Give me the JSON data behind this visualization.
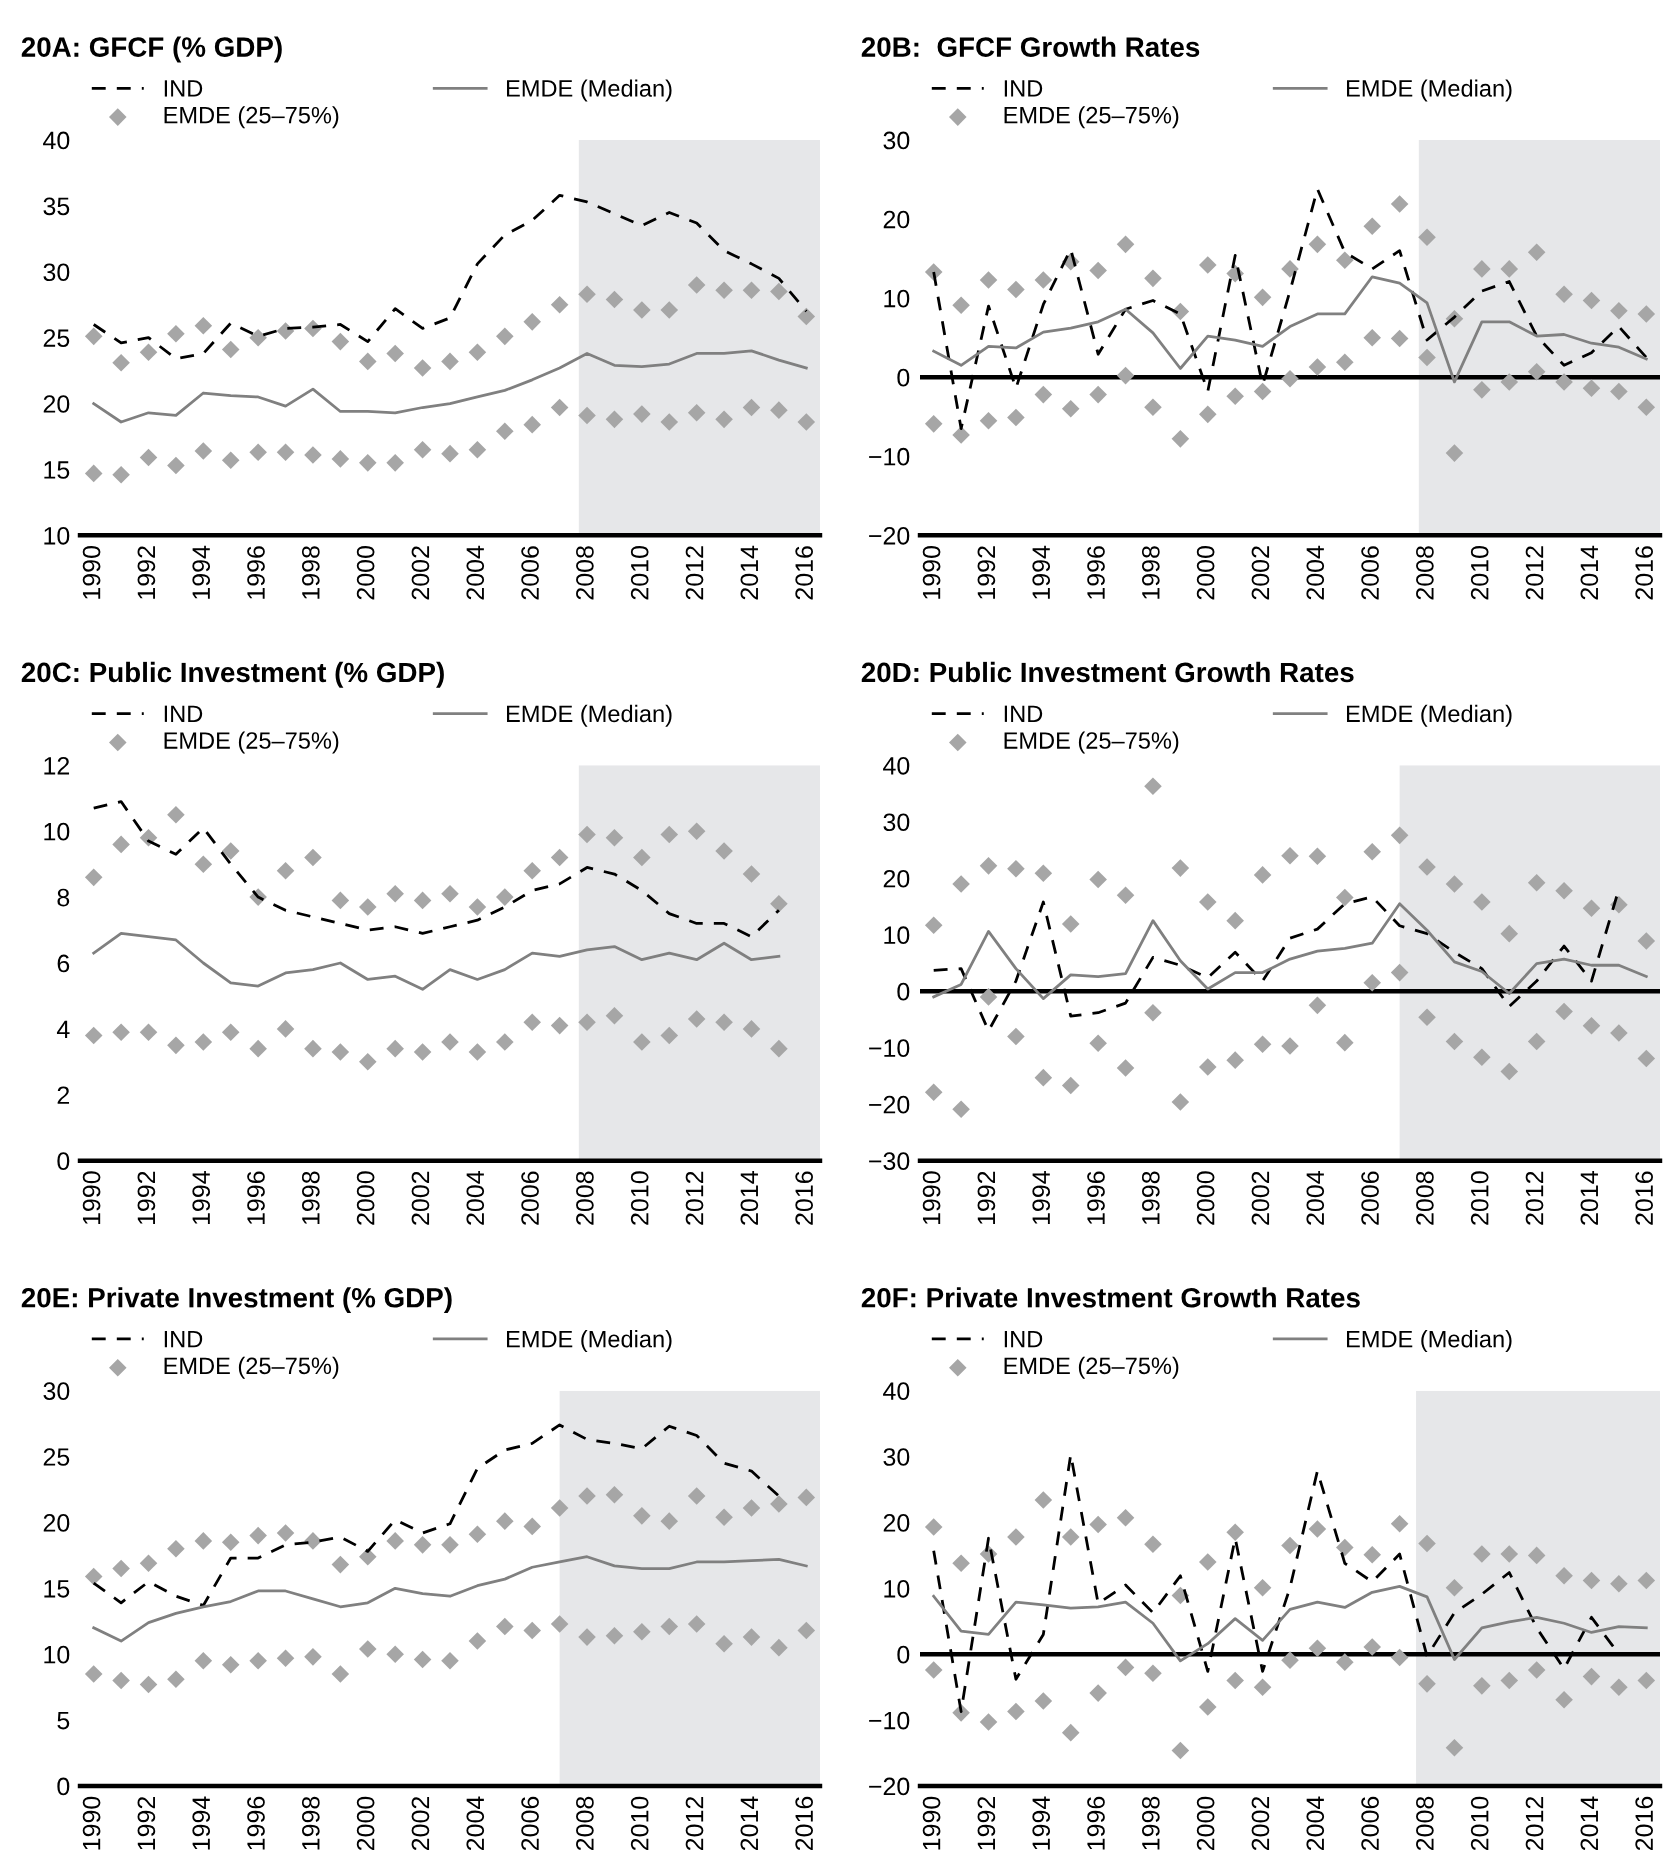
{
  "chart_data": [
    {
      "type": "line",
      "title": "20A: GFCF (% GDP)",
      "x": [
        1990,
        1991,
        1992,
        1993,
        1994,
        1995,
        1996,
        1997,
        1998,
        1999,
        2000,
        2001,
        2002,
        2003,
        2004,
        2005,
        2006,
        2007,
        2008,
        2009,
        2010,
        2011,
        2012,
        2013,
        2014,
        2015,
        2016
      ],
      "xlim": [
        1989.5,
        2016.5
      ],
      "xticks": [
        1990,
        1992,
        1994,
        1996,
        1998,
        2000,
        2002,
        2004,
        2006,
        2008,
        2010,
        2012,
        2014,
        2016
      ],
      "ylim": [
        10,
        40
      ],
      "yticks": [
        10,
        15,
        20,
        25,
        30,
        35,
        40
      ],
      "legend": "top",
      "grid": false,
      "bands": [
        {
          "axis": "x",
          "from": 2007.7,
          "to": 2016.5,
          "color": "#e6e7e9"
        }
      ],
      "series": [
        {
          "name": "IND",
          "type": "line",
          "color": "#000000",
          "line_style": "dashed",
          "values": [
            26.0,
            24.6,
            25.0,
            23.4,
            23.8,
            26.1,
            25.1,
            25.7,
            25.8,
            26.0,
            24.7,
            27.2,
            25.7,
            26.5,
            30.6,
            32.8,
            33.9,
            35.8,
            35.3,
            34.4,
            33.5,
            34.5,
            33.7,
            31.6,
            30.6,
            29.5,
            27.0
          ]
        },
        {
          "name": "EMDE (Median)",
          "type": "line",
          "color": "#808080",
          "line_style": "solid",
          "values": [
            20.0,
            18.6,
            19.3,
            19.1,
            20.8,
            20.6,
            20.5,
            19.8,
            21.1,
            19.4,
            19.4,
            19.3,
            19.7,
            20.0,
            20.5,
            21.0,
            21.8,
            22.7,
            23.8,
            22.9,
            22.8,
            23.0,
            23.8,
            23.8,
            24.0,
            23.3,
            22.7
          ]
        },
        {
          "name": "EMDE (25–75%)",
          "type": "scatter",
          "marker": "diamond",
          "color": "#a6a6a6",
          "values": [
            25.1,
            23.1,
            23.9,
            25.3,
            25.9,
            24.1,
            25.0,
            25.5,
            25.7,
            24.7,
            23.2,
            23.8,
            22.7,
            23.2,
            23.9,
            25.1,
            26.2,
            27.5,
            28.3,
            27.9,
            27.1,
            27.1,
            29.0,
            28.6,
            28.6,
            28.5,
            26.6
          ]
        },
        {
          "type": "scatter",
          "marker": "diamond",
          "color": "#a6a6a6",
          "values": [
            14.7,
            14.6,
            15.9,
            15.3,
            16.4,
            15.7,
            16.3,
            16.3,
            16.1,
            15.8,
            15.5,
            15.5,
            16.5,
            16.2,
            16.5,
            17.9,
            18.4,
            19.7,
            19.1,
            18.8,
            19.2,
            18.6,
            19.3,
            18.8,
            19.7,
            19.5,
            18.6
          ]
        }
      ]
    },
    {
      "type": "line",
      "title": "20B:  GFCF Growth Rates",
      "x": [
        1990,
        1991,
        1992,
        1993,
        1994,
        1995,
        1996,
        1997,
        1998,
        1999,
        2000,
        2001,
        2002,
        2003,
        2004,
        2005,
        2006,
        2007,
        2008,
        2009,
        2010,
        2011,
        2012,
        2013,
        2014,
        2015,
        2016
      ],
      "xlim": [
        1989.5,
        2016.5
      ],
      "xticks": [
        1990,
        1992,
        1994,
        1996,
        1998,
        2000,
        2002,
        2004,
        2006,
        2008,
        2010,
        2012,
        2014,
        2016
      ],
      "ylim": [
        -20,
        30
      ],
      "yticks": [
        {
          "value": -20,
          "label": "−20"
        },
        {
          "value": -10,
          "label": "−10"
        },
        0,
        10,
        20,
        30
      ],
      "legend": "top",
      "grid": false,
      "ref_lines": [
        {
          "axis": "y",
          "value": 0,
          "color": "#000000"
        }
      ],
      "bands": [
        {
          "axis": "x",
          "from": 2007.7,
          "to": 2016.5,
          "color": "#e6e7e9"
        }
      ],
      "series": [
        {
          "name": "IND",
          "type": "line",
          "color": "#000000",
          "line_style": "dashed",
          "values": [
            13.3,
            -6.5,
            9.0,
            -1.4,
            9.2,
            16.2,
            2.9,
            8.6,
            9.7,
            8.0,
            -1.8,
            15.4,
            -1.0,
            10.9,
            23.8,
            15.8,
            13.7,
            16.0,
            4.7,
            7.6,
            10.9,
            12.1,
            5.2,
            1.5,
            3.1,
            6.4,
            2.5
          ]
        },
        {
          "name": "EMDE (Median)",
          "type": "line",
          "color": "#808080",
          "line_style": "solid",
          "values": [
            3.3,
            1.5,
            3.9,
            3.7,
            5.7,
            6.2,
            7.0,
            8.6,
            5.6,
            1.1,
            5.2,
            4.7,
            3.9,
            6.4,
            8.0,
            8.0,
            12.7,
            11.9,
            9.4,
            -0.6,
            7.0,
            7.0,
            5.2,
            5.4,
            4.3,
            3.8,
            2.3
          ]
        },
        {
          "name": "EMDE (25–75%)",
          "type": "scatter",
          "marker": "diamond",
          "color": "#a6a6a6",
          "values": [
            13.3,
            9.1,
            12.3,
            11.1,
            12.3,
            14.6,
            13.5,
            16.8,
            12.5,
            8.3,
            14.2,
            13.1,
            10.1,
            13.7,
            16.8,
            14.8,
            19.1,
            21.9,
            17.7,
            7.4,
            13.7,
            13.7,
            15.8,
            10.5,
            9.7,
            8.4,
            8.0
          ]
        },
        {
          "type": "scatter",
          "marker": "diamond",
          "color": "#a6a6a6",
          "values": [
            -5.9,
            -7.3,
            -5.5,
            -5.1,
            -2.2,
            -4.0,
            -2.2,
            0.2,
            -3.8,
            -7.8,
            -4.7,
            -2.4,
            -1.8,
            -0.2,
            1.3,
            1.9,
            5.0,
            4.9,
            2.5,
            -9.6,
            -1.6,
            -0.6,
            0.7,
            -0.6,
            -1.4,
            -1.8,
            -3.8
          ]
        }
      ]
    },
    {
      "type": "line",
      "title": "20C: Public Investment (% GDP)",
      "x": [
        1990,
        1991,
        1992,
        1993,
        1994,
        1995,
        1996,
        1997,
        1998,
        1999,
        2000,
        2001,
        2002,
        2003,
        2004,
        2005,
        2006,
        2007,
        2008,
        2009,
        2010,
        2011,
        2012,
        2013,
        2014,
        2015
      ],
      "xlim": [
        1989.5,
        2016.5
      ],
      "xticks": [
        1990,
        1992,
        1994,
        1996,
        1998,
        2000,
        2002,
        2004,
        2006,
        2008,
        2010,
        2012,
        2014,
        2016
      ],
      "ylim": [
        0,
        12
      ],
      "yticks": [
        0,
        2,
        4,
        6,
        8,
        10,
        12
      ],
      "legend": "top",
      "grid": false,
      "bands": [
        {
          "axis": "x",
          "from": 2007.7,
          "to": 2016.5,
          "color": "#e6e7e9"
        }
      ],
      "series": [
        {
          "name": "IND",
          "type": "line",
          "color": "#000000",
          "line_style": "dashed",
          "values": [
            10.7,
            10.9,
            9.7,
            9.3,
            10.1,
            9.0,
            8.0,
            7.6,
            7.4,
            7.2,
            7.0,
            7.1,
            6.9,
            7.1,
            7.3,
            7.7,
            8.2,
            8.4,
            8.9,
            8.7,
            8.2,
            7.5,
            7.2,
            7.2,
            6.8,
            7.6
          ]
        },
        {
          "name": "EMDE (Median)",
          "type": "line",
          "color": "#808080",
          "line_style": "solid",
          "values": [
            6.3,
            6.9,
            6.8,
            6.7,
            6.0,
            5.4,
            5.3,
            5.7,
            5.8,
            6.0,
            5.5,
            5.6,
            5.2,
            5.8,
            5.5,
            5.8,
            6.3,
            6.2,
            6.4,
            6.5,
            6.1,
            6.3,
            6.1,
            6.6,
            6.1,
            6.2
          ]
        },
        {
          "name": "EMDE (25–75%)",
          "type": "scatter",
          "marker": "diamond",
          "color": "#a6a6a6",
          "values": [
            8.6,
            9.6,
            9.8,
            10.5,
            9.0,
            9.4,
            8.0,
            8.8,
            9.2,
            7.9,
            7.7,
            8.1,
            7.9,
            8.1,
            7.7,
            8.0,
            8.8,
            9.2,
            9.9,
            9.8,
            9.2,
            9.9,
            10.0,
            9.4,
            8.7,
            7.8
          ]
        },
        {
          "type": "scatter",
          "marker": "diamond",
          "color": "#a6a6a6",
          "values": [
            3.8,
            3.9,
            3.9,
            3.5,
            3.6,
            3.9,
            3.4,
            4.0,
            3.4,
            3.3,
            3.0,
            3.4,
            3.3,
            3.6,
            3.3,
            3.6,
            4.2,
            4.1,
            4.2,
            4.4,
            3.6,
            3.8,
            4.3,
            4.2,
            4.0,
            3.4
          ]
        }
      ]
    },
    {
      "type": "line",
      "title": "20D: Public Investment Growth Rates",
      "x": [
        1990,
        1991,
        1992,
        1993,
        1994,
        1995,
        1996,
        1997,
        1998,
        1999,
        2000,
        2001,
        2002,
        2003,
        2004,
        2005,
        2006,
        2007,
        2008,
        2009,
        2010,
        2011,
        2012,
        2013,
        2014,
        2015,
        2016
      ],
      "xlim": [
        1989.5,
        2016.5
      ],
      "xticks": [
        1990,
        1992,
        1994,
        1996,
        1998,
        2000,
        2002,
        2004,
        2006,
        2008,
        2010,
        2012,
        2014,
        2016
      ],
      "ylim": [
        -30,
        40
      ],
      "yticks": [
        {
          "value": -30,
          "label": "−30"
        },
        {
          "value": -20,
          "label": "−20"
        },
        {
          "value": -10,
          "label": "−10"
        },
        0,
        10,
        20,
        30,
        40
      ],
      "legend": "top",
      "grid": false,
      "ref_lines": [
        {
          "axis": "y",
          "value": 0,
          "color": "#000000"
        }
      ],
      "bands": [
        {
          "axis": "x",
          "from": 2007.0,
          "to": 2016.5,
          "color": "#e6e7e9"
        }
      ],
      "series": [
        {
          "name": "IND",
          "type": "line",
          "color": "#000000",
          "line_style": "dashed",
          "values": [
            3.7,
            4.0,
            -7.0,
            1.8,
            15.8,
            -4.4,
            -3.8,
            -2.1,
            6.0,
            4.6,
            2.4,
            6.9,
            1.8,
            9.4,
            11.0,
            15.5,
            16.7,
            11.6,
            10.2,
            6.9,
            4.0,
            -2.7,
            1.8,
            8.0,
            1.8,
            18.1,
            null
          ]
        },
        {
          "name": "EMDE (Median)",
          "type": "line",
          "color": "#808080",
          "line_style": "solid",
          "values": [
            -1.0,
            1.2,
            10.6,
            4.0,
            -1.3,
            2.9,
            2.6,
            3.1,
            12.5,
            5.4,
            0.4,
            3.3,
            3.3,
            5.7,
            7.1,
            7.6,
            8.5,
            15.5,
            10.8,
            5.2,
            3.5,
            -0.4,
            4.9,
            5.7,
            4.6,
            4.6,
            2.6
          ]
        },
        {
          "name": "EMDE (25–75%)",
          "type": "scatter",
          "marker": "diamond",
          "color": "#a6a6a6",
          "values": [
            11.7,
            19.0,
            22.2,
            21.7,
            20.9,
            11.9,
            19.8,
            17.0,
            36.3,
            21.8,
            15.8,
            12.5,
            20.6,
            24.0,
            23.9,
            16.6,
            24.7,
            27.6,
            22.0,
            19.0,
            15.8,
            10.2,
            19.2,
            17.8,
            14.7,
            15.3,
            8.9
          ]
        },
        {
          "type": "scatter",
          "marker": "diamond",
          "color": "#a6a6a6",
          "values": [
            -17.9,
            -20.9,
            -1.0,
            -8.0,
            -15.3,
            -16.7,
            -9.2,
            -13.6,
            -3.8,
            -19.6,
            -13.4,
            -12.2,
            -9.4,
            -9.7,
            -2.5,
            -9.1,
            1.5,
            3.3,
            -4.6,
            -8.9,
            -11.7,
            -14.2,
            -8.9,
            -3.6,
            -6.1,
            -7.4,
            -11.9
          ]
        }
      ]
    },
    {
      "type": "line",
      "title": "20E: Private Investment (% GDP)",
      "x": [
        1990,
        1991,
        1992,
        1993,
        1994,
        1995,
        1996,
        1997,
        1998,
        1999,
        2000,
        2001,
        2002,
        2003,
        2004,
        2005,
        2006,
        2007,
        2008,
        2009,
        2010,
        2011,
        2012,
        2013,
        2014,
        2015,
        2016
      ],
      "xlim": [
        1989.5,
        2016.5
      ],
      "xticks": [
        1990,
        1992,
        1994,
        1996,
        1998,
        2000,
        2002,
        2004,
        2006,
        2008,
        2010,
        2012,
        2014,
        2016
      ],
      "ylim": [
        0,
        30
      ],
      "yticks": [
        0,
        5,
        10,
        15,
        20,
        25,
        30
      ],
      "legend": "top",
      "grid": false,
      "bands": [
        {
          "axis": "x",
          "from": 2007.0,
          "to": 2016.5,
          "color": "#e6e7e9"
        }
      ],
      "series": [
        {
          "name": "IND",
          "type": "line",
          "color": "#000000",
          "line_style": "dashed",
          "values": [
            15.4,
            13.9,
            15.5,
            14.4,
            13.7,
            17.3,
            17.3,
            18.3,
            18.5,
            18.9,
            17.8,
            20.2,
            19.2,
            19.9,
            24.1,
            25.5,
            26.0,
            27.4,
            26.3,
            26.0,
            25.6,
            27.3,
            26.6,
            24.5,
            23.9,
            22.0,
            null
          ]
        },
        {
          "name": "EMDE (Median)",
          "type": "line",
          "color": "#808080",
          "line_style": "solid",
          "values": [
            12.0,
            11.0,
            12.4,
            13.1,
            13.6,
            14.0,
            14.8,
            14.8,
            14.2,
            13.6,
            13.9,
            15.0,
            14.6,
            14.4,
            15.2,
            15.7,
            16.6,
            17.0,
            17.4,
            16.7,
            16.5,
            16.5,
            17.0,
            17.0,
            17.1,
            17.2,
            16.7
          ]
        },
        {
          "name": "EMDE (25–75%)",
          "type": "scatter",
          "marker": "diamond",
          "color": "#a6a6a6",
          "values": [
            15.9,
            16.5,
            16.9,
            18.0,
            18.6,
            18.5,
            19.0,
            19.2,
            18.6,
            16.8,
            17.4,
            18.6,
            18.3,
            18.3,
            19.1,
            20.1,
            19.7,
            21.1,
            22.0,
            22.1,
            20.5,
            20.1,
            22.0,
            20.4,
            21.1,
            21.4,
            21.9
          ]
        },
        {
          "type": "scatter",
          "marker": "diamond",
          "color": "#a6a6a6",
          "values": [
            8.5,
            8.0,
            7.7,
            8.1,
            9.5,
            9.2,
            9.5,
            9.7,
            9.8,
            8.5,
            10.4,
            10.0,
            9.6,
            9.5,
            11.0,
            12.1,
            11.8,
            12.3,
            11.3,
            11.4,
            11.7,
            12.1,
            12.3,
            10.8,
            11.3,
            10.5,
            11.8
          ]
        }
      ]
    },
    {
      "type": "line",
      "title": "20F: Private Investment Growth Rates",
      "x": [
        1990,
        1991,
        1992,
        1993,
        1994,
        1995,
        1996,
        1997,
        1998,
        1999,
        2000,
        2001,
        2002,
        2003,
        2004,
        2005,
        2006,
        2007,
        2008,
        2009,
        2010,
        2011,
        2012,
        2013,
        2014,
        2015,
        2016
      ],
      "xlim": [
        1989.5,
        2016.5
      ],
      "xticks": [
        1990,
        1992,
        1994,
        1996,
        1998,
        2000,
        2002,
        2004,
        2006,
        2008,
        2010,
        2012,
        2014,
        2016
      ],
      "ylim": [
        -20,
        40
      ],
      "yticks": [
        {
          "value": -20,
          "label": "−20"
        },
        {
          "value": -10,
          "label": "−10"
        },
        0,
        10,
        20,
        30,
        40
      ],
      "legend": "top",
      "grid": false,
      "ref_lines": [
        {
          "axis": "y",
          "value": 0,
          "color": "#000000"
        }
      ],
      "bands": [
        {
          "axis": "x",
          "from": 2007.6,
          "to": 2016.5,
          "color": "#e6e7e9"
        }
      ],
      "series": [
        {
          "name": "IND",
          "type": "line",
          "color": "#000000",
          "line_style": "dashed",
          "values": [
            15.7,
            -8.7,
            17.6,
            -3.8,
            3.0,
            30.3,
            7.7,
            10.5,
            6.3,
            11.9,
            -2.6,
            17.6,
            -2.6,
            10.1,
            27.8,
            13.8,
            11.0,
            15.2,
            -0.3,
            6.3,
            9.1,
            12.4,
            4.0,
            -2.2,
            5.6,
            0.0,
            null
          ]
        },
        {
          "name": "EMDE (Median)",
          "type": "line",
          "color": "#808080",
          "line_style": "solid",
          "values": [
            8.8,
            3.5,
            3.0,
            7.9,
            7.5,
            7.0,
            7.2,
            7.9,
            4.7,
            -1.0,
            1.6,
            5.4,
            2.1,
            6.8,
            7.9,
            7.1,
            9.4,
            10.3,
            8.7,
            -0.8,
            4.0,
            4.9,
            5.6,
            4.7,
            3.3,
            4.2,
            4.0
          ]
        },
        {
          "name": "EMDE (25–75%)",
          "type": "scatter",
          "marker": "diamond",
          "color": "#a6a6a6",
          "values": [
            19.3,
            13.8,
            15.2,
            17.8,
            23.4,
            17.8,
            19.7,
            20.7,
            16.7,
            8.9,
            14.0,
            18.5,
            10.1,
            16.5,
            19.0,
            16.2,
            15.1,
            19.8,
            16.8,
            10.1,
            15.2,
            15.2,
            15.0,
            11.9,
            11.2,
            10.7,
            11.2
          ]
        },
        {
          "type": "scatter",
          "marker": "diamond",
          "color": "#a6a6a6",
          "values": [
            -2.4,
            -8.9,
            -10.3,
            -8.7,
            -7.1,
            -11.9,
            -5.9,
            -2.0,
            -2.9,
            -14.6,
            -8.0,
            -4.0,
            -5.0,
            -0.9,
            0.9,
            -1.2,
            1.1,
            -0.5,
            -4.5,
            -14.2,
            -4.8,
            -4.0,
            -2.4,
            -6.9,
            -3.4,
            -5.0,
            -4.0
          ]
        }
      ]
    }
  ]
}
